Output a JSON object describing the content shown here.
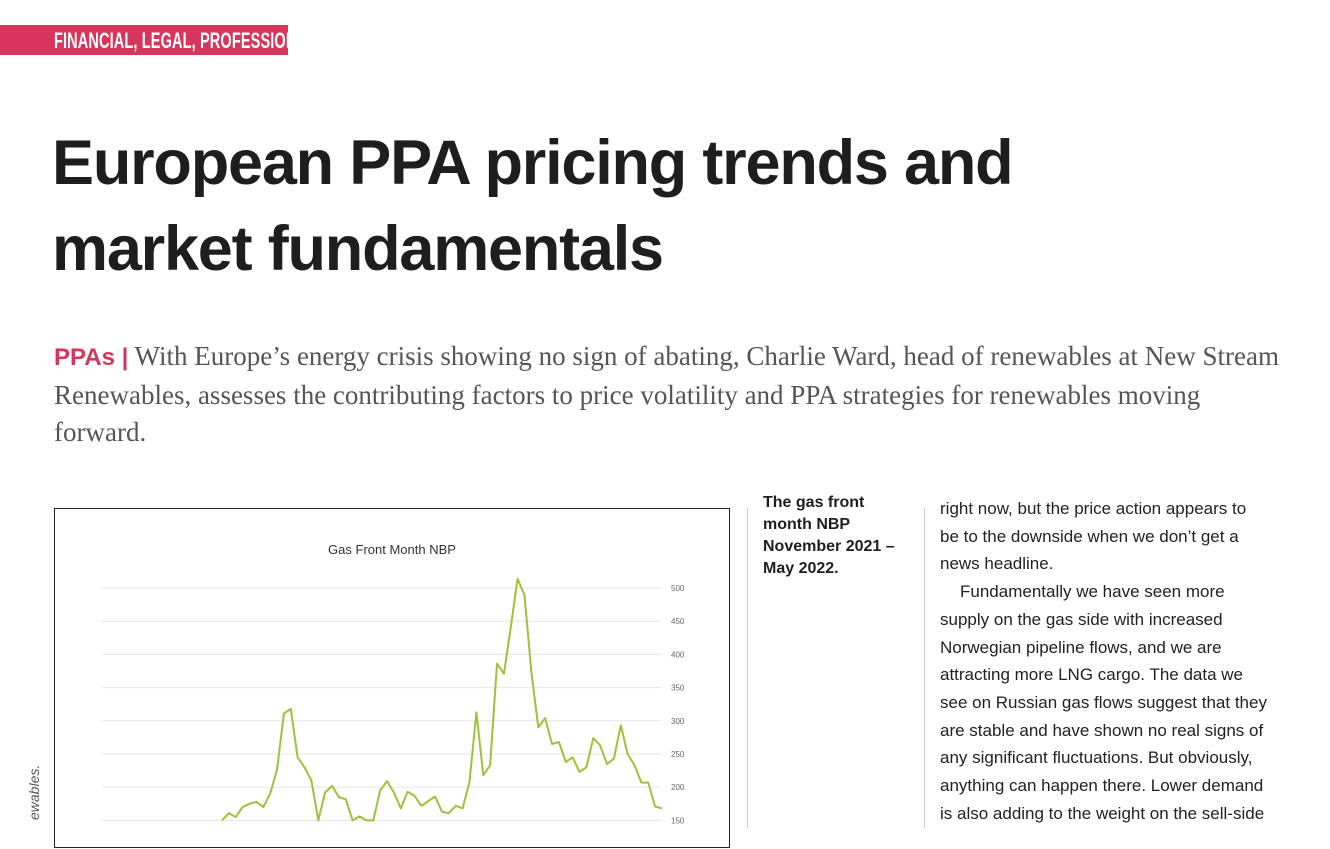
{
  "section_tag": "FINANCIAL, LEGAL, PROFESSIONAL",
  "title_lines": [
    "European PPA pricing trends and",
    "market fundamentals"
  ],
  "standfirst": {
    "kicker": "PPAs |",
    "text": " With Europe’s energy crisis showing no sign of abating, Charlie Ward, head of renewables at New Stream Renewables, assesses the contributing factors to price volatility and PPA strategies for renewables moving forward."
  },
  "photo_credit_fragment": "ewables.",
  "caption_lines": [
    "The gas front",
    "month NBP",
    "November 2021 –",
    "May 2022."
  ],
  "body_lines": [
    "right now, but the price action appears to",
    "be to the downside when we don’t get a",
    "news headline.",
    "Fundamentally we have seen more",
    "supply on the gas side with increased",
    "Norwegian pipeline flows, and we are",
    "attracting more LNG cargo. The data we",
    "see on Russian gas flows suggest that they",
    "are stable and have shown no real signs of",
    "any significant fluctuations. But obviously,",
    "anything can happen there. Lower demand",
    "is also adding to the weight on the sell-side"
  ],
  "colors": {
    "accent": "#d6365c",
    "line": "#9dc23a"
  },
  "chart_data": {
    "type": "line",
    "title": "Gas Front Month NBP",
    "xlabel": "",
    "ylabel": "",
    "y_ticks": [
      150,
      200,
      250,
      300,
      350,
      400,
      450,
      500
    ],
    "y_axis_side": "right",
    "ylim": [
      150,
      500
    ],
    "grid": true,
    "series": [
      {
        "values": [
          150,
          161,
          155,
          170,
          175,
          178,
          170,
          190,
          226,
          311,
          318,
          245,
          230,
          210,
          150,
          192,
          202,
          185,
          182,
          150,
          156,
          150,
          150,
          195,
          209,
          192,
          168,
          193,
          187,
          172,
          179,
          186,
          163,
          161,
          172,
          168,
          208,
          313,
          218,
          233,
          386,
          371,
          441,
          514,
          489,
          373,
          290,
          304,
          265,
          268,
          238,
          245,
          223,
          230,
          274,
          263,
          235,
          243,
          293,
          250,
          233,
          207,
          207,
          171,
          168
        ]
      }
    ]
  }
}
